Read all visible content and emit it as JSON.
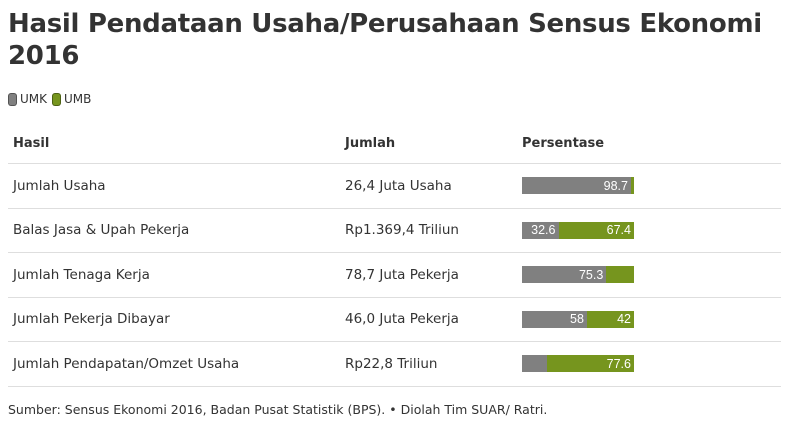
{
  "title": "Hasil Pendataan Usaha/Perusahaan Sensus Ekonomi 2016",
  "legend": [
    {
      "label": "UMK",
      "color": "#808080"
    },
    {
      "label": "UMB",
      "color": "#76951e"
    }
  ],
  "table": {
    "headers": [
      "Hasil",
      "Jumlah",
      "Persentase"
    ],
    "rows": [
      {
        "hasil": "Jumlah Usaha",
        "jumlah": "26,4 Juta Usaha",
        "umk": 98.7,
        "umb": 1.3,
        "umk_label": "98.7",
        "umb_label": ""
      },
      {
        "hasil": "Balas Jasa & Upah Pekerja",
        "jumlah": "Rp1.369,4 Triliun",
        "umk": 32.6,
        "umb": 67.4,
        "umk_label": "32.6",
        "umb_label": "67.4"
      },
      {
        "hasil": "Jumlah Tenaga Kerja",
        "jumlah": "78,7 Juta Pekerja",
        "umk": 75.3,
        "umb": 24.7,
        "umk_label": "75.3",
        "umb_label": ""
      },
      {
        "hasil": "Jumlah Pekerja Dibayar",
        "jumlah": "46,0 Juta Pekerja",
        "umk": 58,
        "umb": 42,
        "umk_label": "58",
        "umb_label": "42"
      },
      {
        "hasil": "Jumlah Pendapatan/Omzet Usaha",
        "jumlah": "Rp22,8 Triliun",
        "umk": 22.4,
        "umb": 77.6,
        "umk_label": "",
        "umb_label": "77.6"
      }
    ]
  },
  "colors": {
    "umk": "#808080",
    "umb": "#76951e",
    "text": "#333333",
    "divider": "#dedede"
  },
  "footer": "Sumber: Sensus Ekonomi 2016, Badan Pusat Statistik (BPS). • Diolah Tim SUAR/ Ratri."
}
